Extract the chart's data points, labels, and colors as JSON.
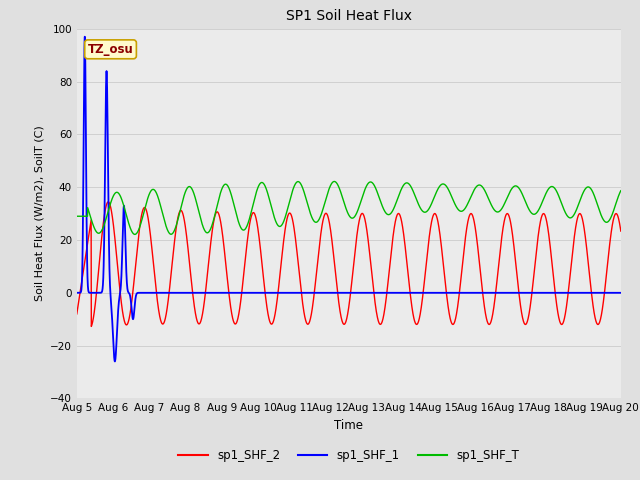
{
  "title": "SP1 Soil Heat Flux",
  "xlabel": "Time",
  "ylabel": "Soil Heat Flux (W/m2), SoilT (C)",
  "ylim": [
    -40,
    100
  ],
  "annotation_text": "TZ_osu",
  "annotation_color": "#8B0000",
  "annotation_bg": "#FFFACD",
  "annotation_border": "#C8A000",
  "line_colors": {
    "sp1_SHF_2": "#FF0000",
    "sp1_SHF_1": "#0000FF",
    "sp1_SHF_T": "#00BB00"
  },
  "legend_labels": [
    "sp1_SHF_2",
    "sp1_SHF_1",
    "sp1_SHF_T"
  ],
  "x_tick_labels": [
    "Aug 5",
    "Aug 6",
    "Aug 7",
    "Aug 8",
    "Aug 9",
    "Aug 10",
    "Aug 11",
    "Aug 12",
    "Aug 13",
    "Aug 14",
    "Aug 15",
    "Aug 16",
    "Aug 17",
    "Aug 18",
    "Aug 19",
    "Aug 20"
  ],
  "grid_color": "#D0D0D0",
  "bg_color": "#E0E0E0",
  "plot_bg_color": "#EBEBEB"
}
